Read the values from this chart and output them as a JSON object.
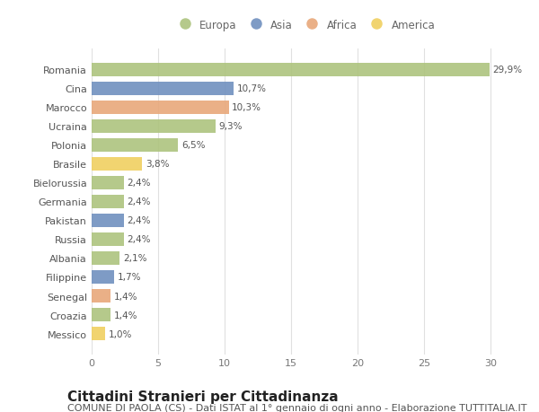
{
  "countries": [
    "Romania",
    "Cina",
    "Marocco",
    "Ucraina",
    "Polonia",
    "Brasile",
    "Bielorussia",
    "Germania",
    "Pakistan",
    "Russia",
    "Albania",
    "Filippine",
    "Senegal",
    "Croazia",
    "Messico"
  ],
  "values": [
    29.9,
    10.7,
    10.3,
    9.3,
    6.5,
    3.8,
    2.4,
    2.4,
    2.4,
    2.4,
    2.1,
    1.7,
    1.4,
    1.4,
    1.0
  ],
  "labels": [
    "29,9%",
    "10,7%",
    "10,3%",
    "9,3%",
    "6,5%",
    "3,8%",
    "2,4%",
    "2,4%",
    "2,4%",
    "2,4%",
    "2,1%",
    "1,7%",
    "1,4%",
    "1,4%",
    "1,0%"
  ],
  "continents": [
    "Europa",
    "Asia",
    "Africa",
    "Europa",
    "Europa",
    "America",
    "Europa",
    "Europa",
    "Asia",
    "Europa",
    "Europa",
    "Asia",
    "Africa",
    "Europa",
    "America"
  ],
  "colors": {
    "Europa": "#adc47e",
    "Asia": "#7090bf",
    "Africa": "#e8a87a",
    "America": "#f0d060"
  },
  "bg_color": "#ffffff",
  "grid_color": "#e0e0e0",
  "xlim": [
    0,
    32
  ],
  "xticks": [
    0,
    5,
    10,
    15,
    20,
    25,
    30
  ],
  "title": "Cittadini Stranieri per Cittadinanza",
  "subtitle": "COMUNE DI PAOLA (CS) - Dati ISTAT al 1° gennaio di ogni anno - Elaborazione TUTTITALIA.IT",
  "title_fontsize": 11,
  "subtitle_fontsize": 8,
  "label_fontsize": 7.5,
  "tick_fontsize": 8,
  "legend_fontsize": 8.5
}
